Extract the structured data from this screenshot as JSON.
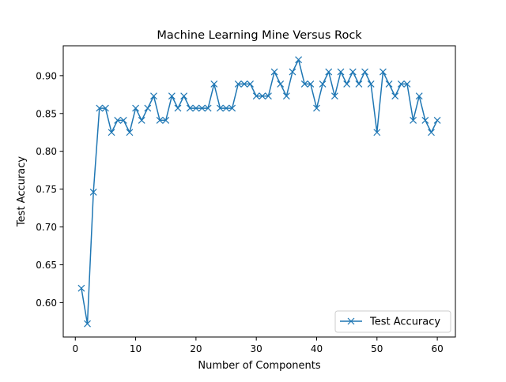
{
  "chart_data": {
    "type": "line",
    "title": "Machine Learning Mine Versus Rock",
    "xlabel": "Number of Components",
    "ylabel": "Test Accuracy",
    "xlim": [
      -2,
      63
    ],
    "ylim": [
      0.5545,
      0.9395
    ],
    "xticks": [
      0,
      10,
      20,
      30,
      40,
      50,
      60
    ],
    "xtick_labels": [
      "0",
      "10",
      "20",
      "30",
      "40",
      "50",
      "60"
    ],
    "yticks": [
      0.6,
      0.65,
      0.7,
      0.75,
      0.8,
      0.85,
      0.9
    ],
    "ytick_labels": [
      "0.60",
      "0.65",
      "0.70",
      "0.75",
      "0.80",
      "0.85",
      "0.90"
    ],
    "grid": false,
    "legend_position": "lower-right",
    "series": [
      {
        "name": "Test Accuracy",
        "color": "#1f77b4",
        "marker": "x",
        "x": [
          1,
          2,
          3,
          4,
          5,
          6,
          7,
          8,
          9,
          10,
          11,
          12,
          13,
          14,
          15,
          16,
          17,
          18,
          19,
          20,
          21,
          22,
          23,
          24,
          25,
          26,
          27,
          28,
          29,
          30,
          31,
          32,
          33,
          34,
          35,
          36,
          37,
          38,
          39,
          40,
          41,
          42,
          43,
          44,
          45,
          46,
          47,
          48,
          49,
          50,
          51,
          52,
          53,
          54,
          55,
          56,
          57,
          58,
          59,
          60
        ],
        "y": [
          0.619,
          0.572,
          0.746,
          0.857,
          0.857,
          0.825,
          0.841,
          0.841,
          0.825,
          0.857,
          0.841,
          0.857,
          0.873,
          0.841,
          0.841,
          0.873,
          0.857,
          0.873,
          0.857,
          0.857,
          0.857,
          0.857,
          0.889,
          0.857,
          0.857,
          0.857,
          0.889,
          0.889,
          0.889,
          0.873,
          0.873,
          0.873,
          0.905,
          0.889,
          0.873,
          0.905,
          0.921,
          0.889,
          0.889,
          0.857,
          0.889,
          0.905,
          0.873,
          0.905,
          0.889,
          0.905,
          0.889,
          0.905,
          0.889,
          0.825,
          0.905,
          0.889,
          0.873,
          0.889,
          0.889,
          0.841,
          0.873,
          0.841,
          0.825,
          0.841
        ]
      }
    ]
  }
}
